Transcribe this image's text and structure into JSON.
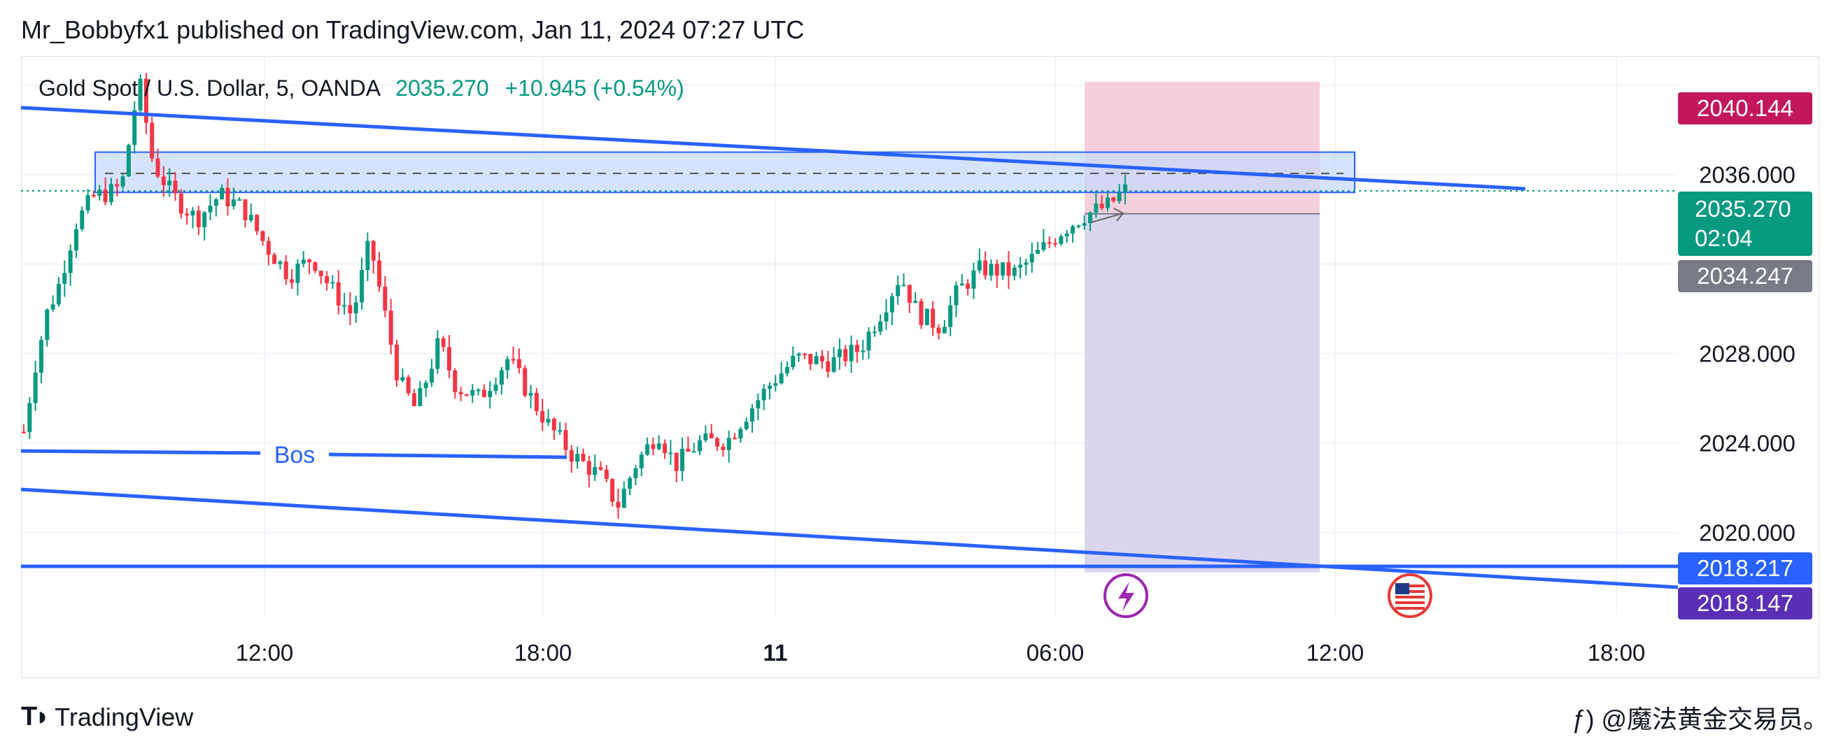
{
  "header": {
    "publisher": "Mr_Bobbyfx1 published on TradingView.com, Jan 11, 2024 07:27 UTC"
  },
  "symbol": {
    "name": "Gold Spot / U.S. Dollar, 5, OANDA",
    "price": "2035.270",
    "change": "+10.945 (+0.54%)"
  },
  "badges": {
    "stop_level": "2040.144",
    "last_price": "2035.270",
    "countdown": "02:04",
    "entry_level": "2034.247",
    "target_level": "2018.217",
    "lower_line": "2018.147"
  },
  "annotation": {
    "bos": "Bos"
  },
  "footer": {
    "brand": "TradingView",
    "watermark": "ƒ) @魔法黄金交易员。"
  },
  "colors": {
    "up": "#089981",
    "down": "#f23645",
    "trendline": "#2962ff",
    "stop_zone": "#f2c8d6",
    "target_zone": "#d9d4ee",
    "supply_zone": "#c8d9fb",
    "badge_stop": "#c2185b",
    "badge_price": "#089981",
    "badge_entry": "#787b86",
    "badge_target": "#2962ff",
    "badge_lower": "#5b2fb5"
  },
  "chart_data": {
    "type": "candlestick",
    "instrument": "Gold Spot / U.S. Dollar",
    "timeframe": "5",
    "x_ticks": [
      "12:00",
      "18:00",
      "11",
      "06:00",
      "12:00",
      "18:00"
    ],
    "y_ticks": [
      2020.0,
      2024.0,
      2028.0,
      2036.0
    ],
    "y_tick_labels": [
      "2020.000",
      "2024.000",
      "2028.000",
      "2036.000"
    ],
    "ylim": [
      2016.3,
      2041.3
    ],
    "grid": true,
    "last_price": 2035.27,
    "price_path": [
      [
        0,
        2024.5
      ],
      [
        10,
        2027.5
      ],
      [
        20,
        2029.8
      ],
      [
        30,
        2031.0
      ],
      [
        45,
        2033.8
      ],
      [
        60,
        2035.0
      ],
      [
        75,
        2035.2
      ],
      [
        85,
        2035.5
      ],
      [
        100,
        2040.2
      ],
      [
        112,
        2036.5
      ],
      [
        130,
        2035.0
      ],
      [
        150,
        2034.0
      ],
      [
        170,
        2035.1
      ],
      [
        190,
        2034.5
      ],
      [
        210,
        2032.8
      ],
      [
        230,
        2031.5
      ],
      [
        250,
        2032.3
      ],
      [
        265,
        2031.0
      ],
      [
        285,
        2029.7
      ],
      [
        300,
        2033.0
      ],
      [
        310,
        2030.5
      ],
      [
        325,
        2026.8
      ],
      [
        340,
        2025.5
      ],
      [
        360,
        2028.5
      ],
      [
        375,
        2026.5
      ],
      [
        395,
        2026.0
      ],
      [
        420,
        2027.8
      ],
      [
        440,
        2026.0
      ],
      [
        455,
        2024.8
      ],
      [
        475,
        2023.5
      ],
      [
        500,
        2022.5
      ],
      [
        515,
        2021.2
      ],
      [
        530,
        2023.0
      ],
      [
        550,
        2024.5
      ],
      [
        565,
        2023.0
      ],
      [
        585,
        2024.0
      ],
      [
        610,
        2024.1
      ],
      [
        625,
        2025.2
      ],
      [
        650,
        2026.8
      ],
      [
        670,
        2027.8
      ],
      [
        700,
        2027.6
      ],
      [
        725,
        2028.2
      ],
      [
        745,
        2030.0
      ],
      [
        760,
        2031.5
      ],
      [
        775,
        2029.8
      ],
      [
        795,
        2029.2
      ],
      [
        810,
        2030.8
      ],
      [
        830,
        2031.8
      ],
      [
        860,
        2031.6
      ],
      [
        880,
        2032.5
      ],
      [
        900,
        2033.5
      ],
      [
        920,
        2034.2
      ],
      [
        940,
        2034.6
      ],
      [
        955,
        2035.3
      ]
    ],
    "candle_count": 190,
    "zones": {
      "supply_zone": [
        2035.2,
        2037.0
      ],
      "short_position": {
        "entry": 2034.247,
        "stop": 2040.144,
        "target": 2018.217
      }
    },
    "levels": {
      "supply_mid": 2036.05,
      "last_price": 2035.27,
      "support": 2018.217
    },
    "trendlines": [
      {
        "name": "upper",
        "from": [
          -10,
          2039.8
        ],
        "to": [
          1280,
          2035.2
        ]
      },
      {
        "name": "lower",
        "from": [
          -10,
          2022.3
        ],
        "to": [
          1450,
          2017.9
        ]
      },
      {
        "name": "bos",
        "from": [
          -10,
          2024.1
        ],
        "to": [
          470,
          2023.8
        ]
      }
    ],
    "events": [
      "lightning-icon",
      "us-flag-icon"
    ]
  }
}
